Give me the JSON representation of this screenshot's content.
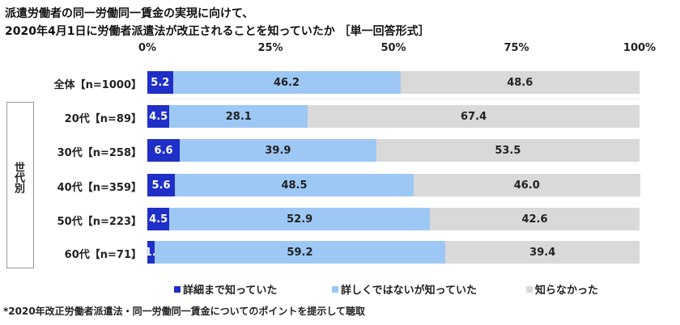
{
  "chart_data": {
    "type": "bar",
    "orientation": "horizontal-stacked",
    "title": "派遣労働者の同一労働同一賃金の実現に向けて、",
    "subtitle": "2020年4月1日に労働者派遣法が改正されることを知っていたか ［単一回答形式］",
    "xlim": [
      0,
      100
    ],
    "ticks": [
      "0%",
      "25%",
      "50%",
      "75%",
      "100%"
    ],
    "tick_values": [
      0,
      25,
      50,
      75,
      100
    ],
    "group_label": "世代別",
    "categories": [
      "全体【n=1000】",
      "20代【n=89】",
      "30代【n=258】",
      "40代【n=359】",
      "50代【n=223】",
      "60代【n=71】"
    ],
    "series": [
      {
        "name": "詳細まで知っていた",
        "color": "#1f2fc8",
        "values": [
          5.2,
          4.5,
          6.6,
          5.6,
          4.5,
          1.4
        ]
      },
      {
        "name": "詳しくではないが知っていた",
        "color": "#9dc8f5",
        "values": [
          46.2,
          28.1,
          39.9,
          48.5,
          52.9,
          59.2
        ]
      },
      {
        "name": "知らなかった",
        "color": "#d9d9d9",
        "values": [
          48.6,
          67.4,
          53.5,
          46.0,
          42.6,
          39.4
        ]
      }
    ],
    "legend_position": "bottom",
    "footnote": "*2020年改正労働者派遣法・同一労働同一賃金についてのポイントを提示して聴取"
  }
}
